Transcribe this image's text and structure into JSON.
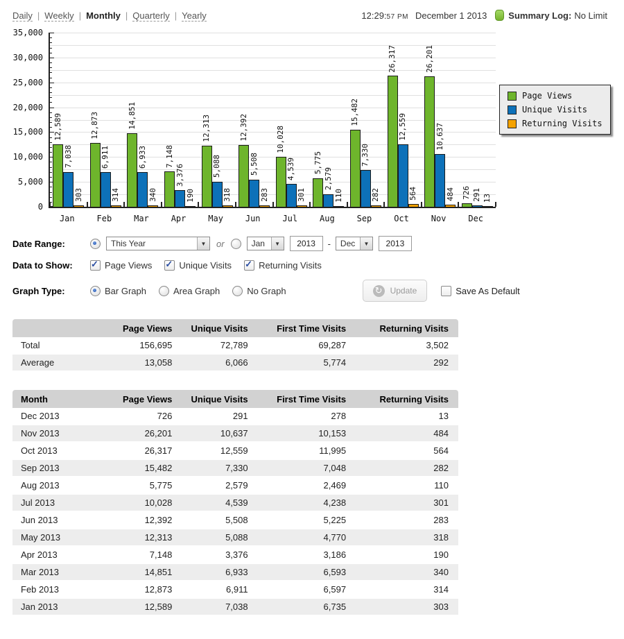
{
  "nav": {
    "separator": "|",
    "items": [
      {
        "label": "Daily",
        "active": false
      },
      {
        "label": "Weekly",
        "active": false
      },
      {
        "label": "Monthly",
        "active": true
      },
      {
        "label": "Quarterly",
        "active": false
      },
      {
        "label": "Yearly",
        "active": false
      }
    ]
  },
  "header": {
    "time": "12:29:",
    "time_small": "57 PM",
    "date": "December 1 2013",
    "summary_label": "Summary Log:",
    "summary_value": "No Limit",
    "log_icon_color": "#7ab42c"
  },
  "chart_data": {
    "type": "bar",
    "categories": [
      "Jan",
      "Feb",
      "Mar",
      "Apr",
      "May",
      "Jun",
      "Jul",
      "Aug",
      "Sep",
      "Oct",
      "Nov",
      "Dec"
    ],
    "series": [
      {
        "name": "Page Views",
        "color": "#6eb52c",
        "values": [
          12589,
          12873,
          14851,
          7148,
          12313,
          12392,
          10028,
          5775,
          15482,
          26317,
          26201,
          726
        ]
      },
      {
        "name": "Unique Visits",
        "color": "#0d71b9",
        "values": [
          7038,
          6911,
          6933,
          3376,
          5088,
          5508,
          4539,
          2579,
          7330,
          12559,
          10637,
          291
        ]
      },
      {
        "name": "Returning Visits",
        "color": "#f4a200",
        "values": [
          303,
          314,
          340,
          190,
          318,
          283,
          301,
          110,
          282,
          564,
          484,
          13
        ]
      }
    ],
    "ylim": [
      0,
      35000
    ],
    "ytick_step": 5000,
    "grid_step": 2500,
    "minor_tick_step": 1000,
    "legend_position": "right",
    "bar_value_labels": true
  },
  "controls": {
    "date_range": {
      "label": "Date Range:",
      "preset": "This Year",
      "preset_radio_checked": true,
      "or_text": "or",
      "custom_radio_checked": false,
      "from_month": "Jan",
      "from_year": "2013",
      "separator": "-",
      "to_month": "Dec",
      "to_year": "2013"
    },
    "data_to_show": {
      "label": "Data to Show:",
      "options": [
        {
          "label": "Page Views",
          "checked": true
        },
        {
          "label": "Unique Visits",
          "checked": true
        },
        {
          "label": "Returning Visits",
          "checked": true
        }
      ]
    },
    "graph_type": {
      "label": "Graph Type:",
      "options": [
        {
          "label": "Bar Graph",
          "checked": true
        },
        {
          "label": "Area Graph",
          "checked": false
        },
        {
          "label": "No Graph",
          "checked": false
        }
      ],
      "update_label": "Update",
      "save_label": "Save As Default",
      "save_checked": false
    }
  },
  "summary_table": {
    "columns": [
      "",
      "Page Views",
      "Unique Visits",
      "First Time Visits",
      "Returning Visits"
    ],
    "rows": [
      {
        "label": "Total",
        "values": [
          "156,695",
          "72,789",
          "69,287",
          "3,502"
        ]
      },
      {
        "label": "Average",
        "values": [
          "13,058",
          "6,066",
          "5,774",
          "292"
        ]
      }
    ]
  },
  "monthly_table": {
    "columns": [
      "Month",
      "Page Views",
      "Unique Visits",
      "First Time Visits",
      "Returning Visits"
    ],
    "rows": [
      [
        "Dec 2013",
        "726",
        "291",
        "278",
        "13"
      ],
      [
        "Nov 2013",
        "26,201",
        "10,637",
        "10,153",
        "484"
      ],
      [
        "Oct 2013",
        "26,317",
        "12,559",
        "11,995",
        "564"
      ],
      [
        "Sep 2013",
        "15,482",
        "7,330",
        "7,048",
        "282"
      ],
      [
        "Aug 2013",
        "5,775",
        "2,579",
        "2,469",
        "110"
      ],
      [
        "Jul 2013",
        "10,028",
        "4,539",
        "4,238",
        "301"
      ],
      [
        "Jun 2013",
        "12,392",
        "5,508",
        "5,225",
        "283"
      ],
      [
        "May 2013",
        "12,313",
        "5,088",
        "4,770",
        "318"
      ],
      [
        "Apr 2013",
        "7,148",
        "3,376",
        "3,186",
        "190"
      ],
      [
        "Mar 2013",
        "14,851",
        "6,933",
        "6,593",
        "340"
      ],
      [
        "Feb 2013",
        "12,873",
        "6,911",
        "6,597",
        "314"
      ],
      [
        "Jan 2013",
        "12,589",
        "7,038",
        "6,735",
        "303"
      ]
    ]
  }
}
